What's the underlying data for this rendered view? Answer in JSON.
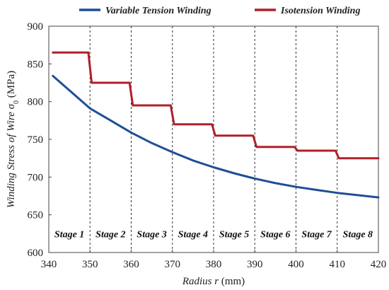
{
  "chart_data": {
    "type": "line",
    "xlabel": {
      "prefix": "Radius ",
      "variable": "r",
      "unit": " (mm)"
    },
    "ylabel": {
      "prefix": "Winding Stress of Wire ",
      "variable": "σ",
      "subscript": "0",
      "unit": " (MPa)"
    },
    "xlim": [
      340,
      420
    ],
    "ylim": [
      600,
      900
    ],
    "x_ticks": [
      340,
      350,
      360,
      370,
      380,
      390,
      400,
      410,
      420
    ],
    "y_ticks": [
      600,
      650,
      700,
      750,
      800,
      850,
      900
    ],
    "legend_position": "top",
    "grid": false,
    "stage_boundaries": [
      350,
      360,
      370,
      380,
      390,
      400,
      410
    ],
    "stages": [
      {
        "label": "Stage 1",
        "center": 345
      },
      {
        "label": "Stage 2",
        "center": 355
      },
      {
        "label": "Stage 3",
        "center": 365
      },
      {
        "label": "Stage 4",
        "center": 375
      },
      {
        "label": "Stage 5",
        "center": 385
      },
      {
        "label": "Stage 6",
        "center": 395
      },
      {
        "label": "Stage 7",
        "center": 405
      },
      {
        "label": "Stage 8",
        "center": 415
      }
    ],
    "stage_label_y": 625,
    "series": [
      {
        "name": "Variable Tension Winding",
        "color": "#1f4e96",
        "x": [
          341,
          345,
          350,
          355,
          360,
          365,
          370,
          375,
          380,
          385,
          390,
          395,
          400,
          405,
          410,
          415,
          420
        ],
        "y": [
          834,
          815,
          791,
          775,
          759,
          745,
          733,
          722,
          713,
          705,
          698,
          692,
          687,
          683,
          679,
          676,
          673
        ]
      },
      {
        "name": "Isotension Winding",
        "color": "#b0202a",
        "x": [
          341,
          349.6,
          350.4,
          359.6,
          360.4,
          369.6,
          370.4,
          379.6,
          380.4,
          389.6,
          390.4,
          399.6,
          400.4,
          409.6,
          410.4,
          420
        ],
        "y": [
          865,
          865,
          825,
          825,
          795,
          795,
          770,
          770,
          755,
          755,
          740,
          740,
          735,
          735,
          725,
          725
        ]
      }
    ]
  }
}
